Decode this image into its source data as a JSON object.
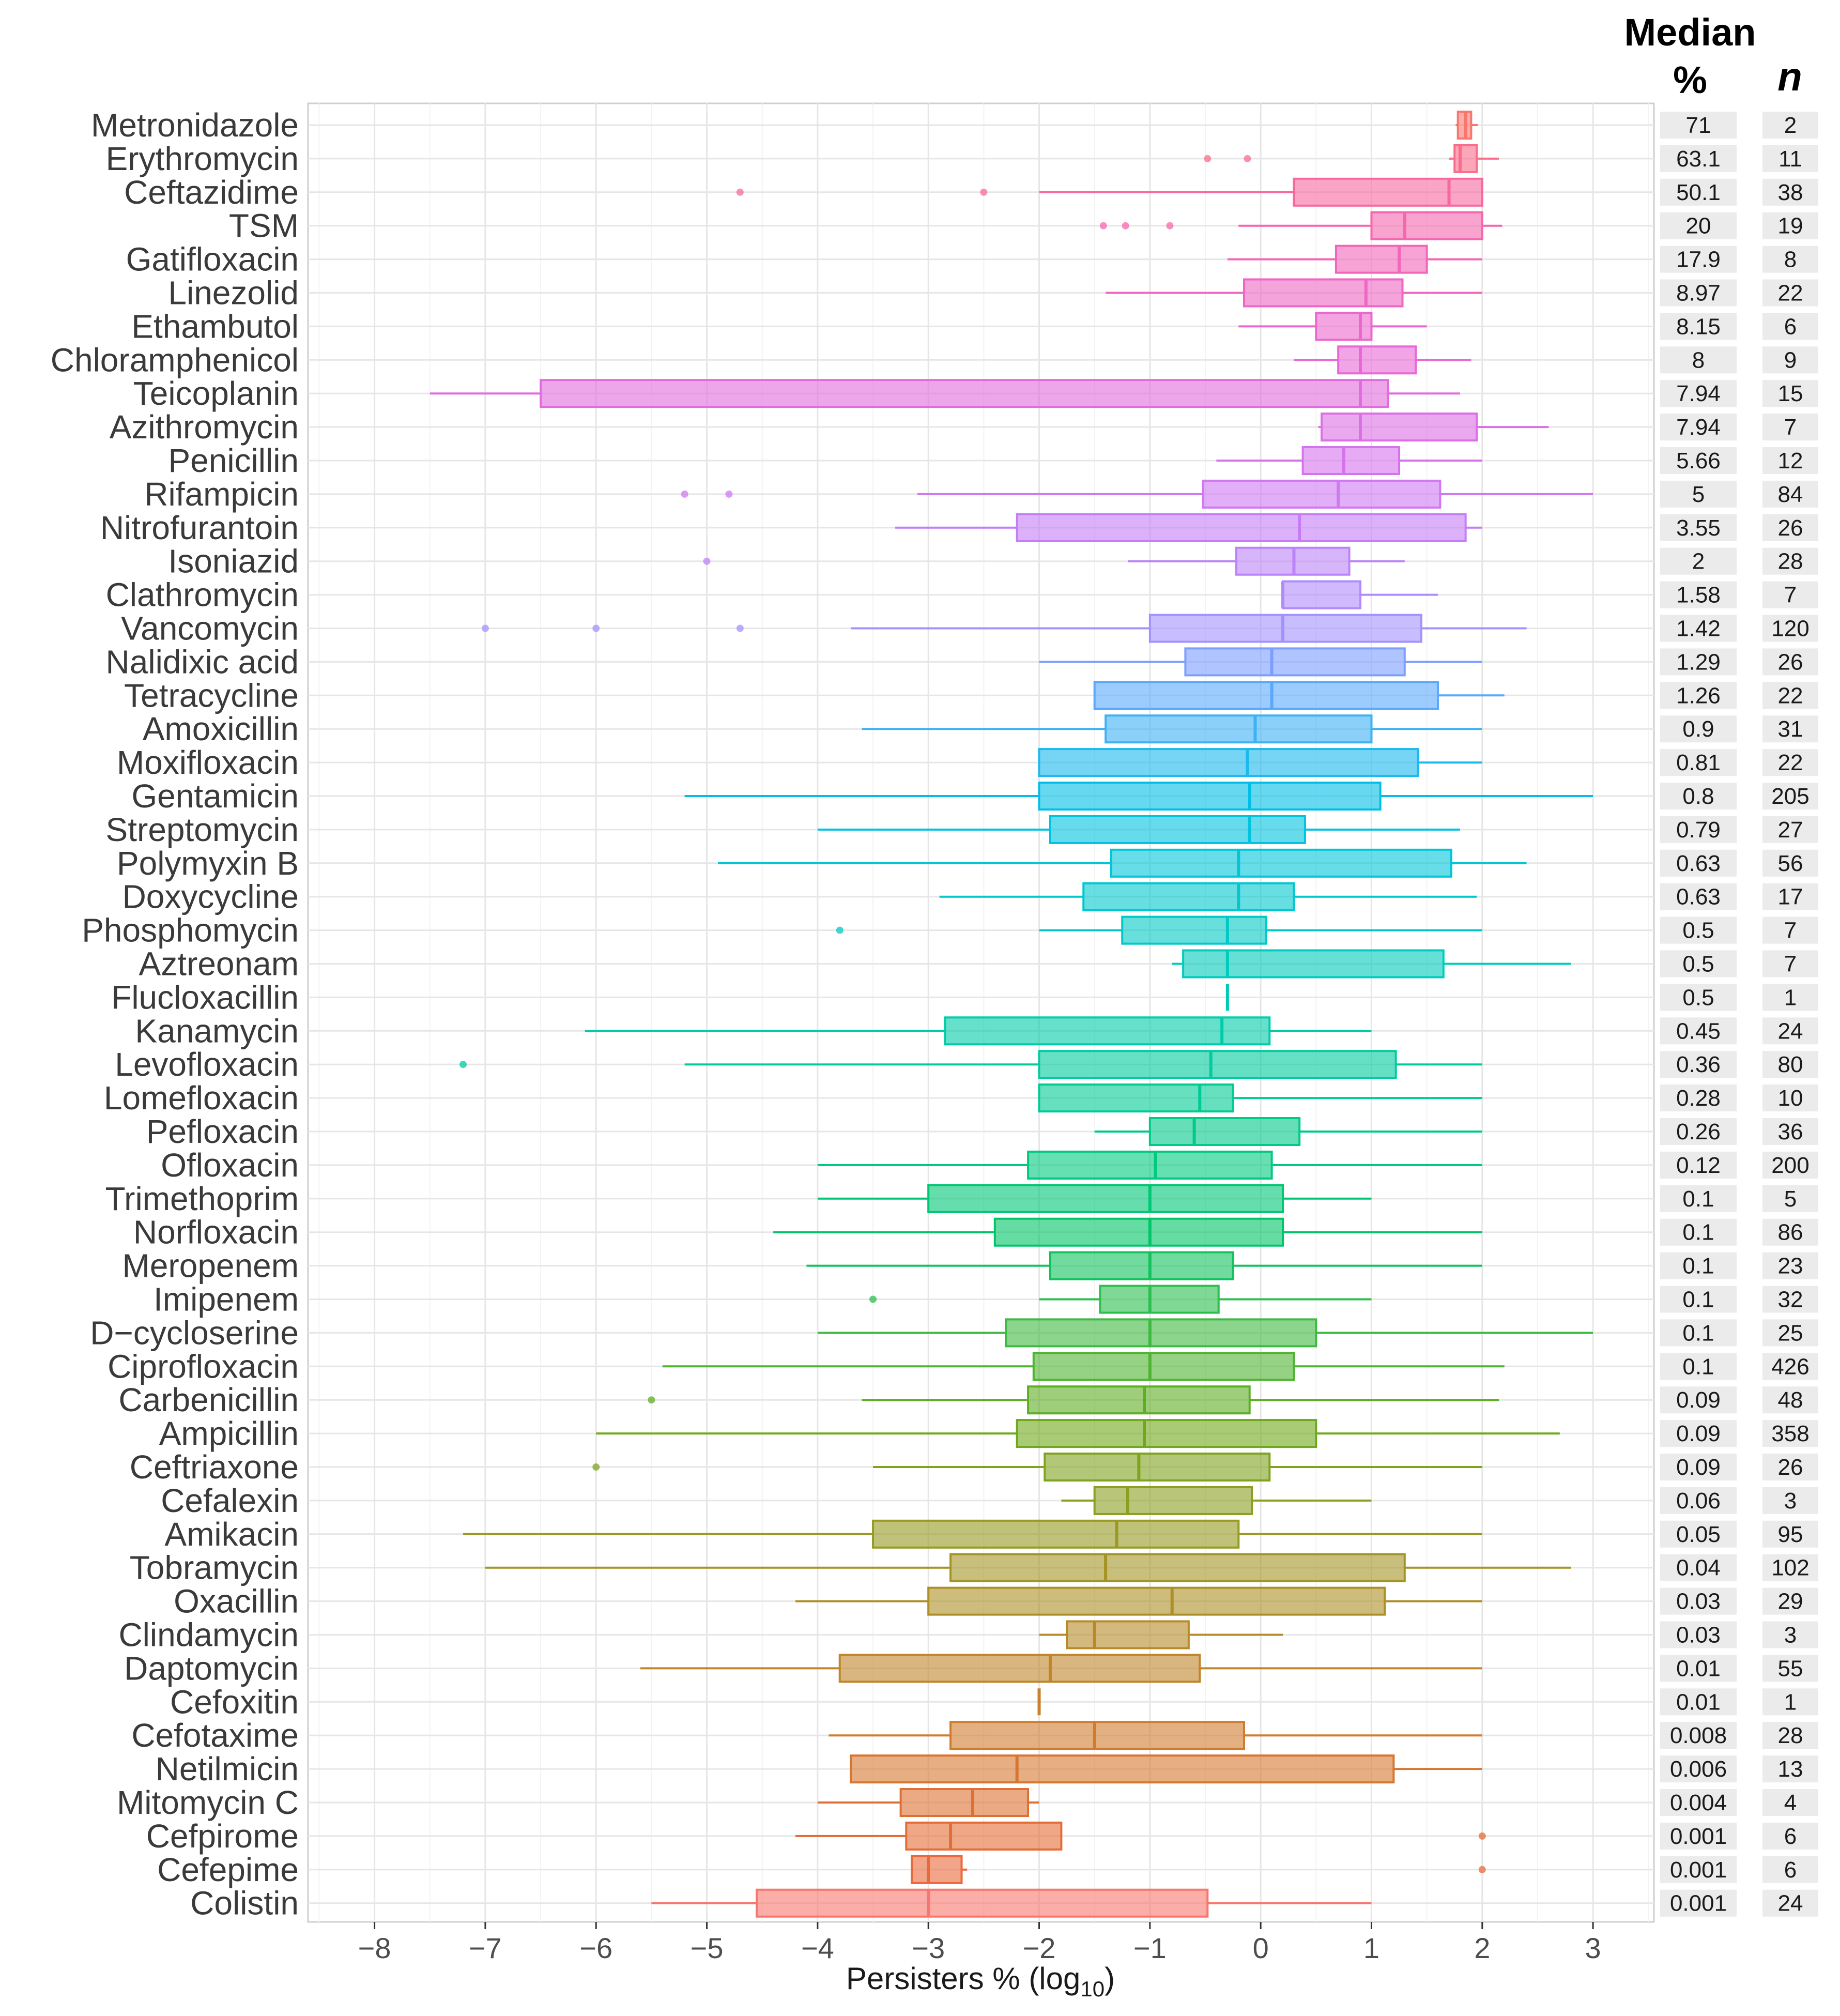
{
  "chart_data": {
    "type": "boxplot",
    "xlabel": "Persisters % (log",
    "xlabel_subscript": "10",
    "xlabel_suffix": ")",
    "xlim": [
      -8.6,
      3.55
    ],
    "x_ticks": [
      -8,
      -7,
      -6,
      -5,
      -4,
      -3,
      -2,
      -1,
      0,
      1,
      2,
      3
    ],
    "x_tick_labels": [
      "−8",
      "−7",
      "−6",
      "−5",
      "−4",
      "−3",
      "−2",
      "−1",
      "0",
      "1",
      "2",
      "3"
    ],
    "table_headers": {
      "median_top": "Median",
      "median_bottom": "%",
      "n": "n"
    },
    "series": [
      {
        "name": "Metronidazole",
        "q1": 1.78,
        "median": 1.85,
        "q3": 1.9,
        "whisker_low": 1.76,
        "whisker_high": 1.96,
        "outliers": [],
        "median_pct": "71",
        "n": "2",
        "color": "#f8766d"
      },
      {
        "name": "Erythromycin",
        "q1": 1.75,
        "median": 1.8,
        "q3": 1.95,
        "whisker_low": 1.7,
        "whisker_high": 2.15,
        "outliers": [
          -0.48,
          -0.12
        ],
        "median_pct": "63.1",
        "n": "11",
        "color": "#fa6d8a"
      },
      {
        "name": "Ceftazidime",
        "q1": 0.3,
        "median": 1.7,
        "q3": 2.0,
        "whisker_low": -2.0,
        "whisker_high": 2.0,
        "outliers": [
          -4.7,
          -2.5
        ],
        "median_pct": "50.1",
        "n": "38",
        "color": "#f7699e"
      },
      {
        "name": "TSM",
        "q1": 1.0,
        "median": 1.3,
        "q3": 2.0,
        "whisker_low": -0.2,
        "whisker_high": 2.18,
        "outliers": [
          -1.42,
          -1.22,
          -0.82
        ],
        "median_pct": "20",
        "n": "19",
        "color": "#f567ad"
      },
      {
        "name": "Gatifloxacin",
        "q1": 0.68,
        "median": 1.25,
        "q3": 1.5,
        "whisker_low": -0.3,
        "whisker_high": 2.0,
        "outliers": [],
        "median_pct": "17.9",
        "n": "8",
        "color": "#f266b9"
      },
      {
        "name": "Linezolid",
        "q1": -0.15,
        "median": 0.95,
        "q3": 1.28,
        "whisker_low": -1.4,
        "whisker_high": 2.0,
        "outliers": [],
        "median_pct": "8.97",
        "n": "22",
        "color": "#ef66c3"
      },
      {
        "name": "Ethambutol",
        "q1": 0.5,
        "median": 0.9,
        "q3": 1.0,
        "whisker_low": -0.2,
        "whisker_high": 1.5,
        "outliers": [],
        "median_pct": "8.15",
        "n": "6",
        "color": "#eb67cd"
      },
      {
        "name": "Chloramphenicol",
        "q1": 0.7,
        "median": 0.9,
        "q3": 1.4,
        "whisker_low": 0.3,
        "whisker_high": 1.9,
        "outliers": [],
        "median_pct": "8",
        "n": "9",
        "color": "#e768d6"
      },
      {
        "name": "Teicoplanin",
        "q1": -6.5,
        "median": 0.9,
        "q3": 1.15,
        "whisker_low": -7.5,
        "whisker_high": 1.8,
        "outliers": [],
        "median_pct": "7.94",
        "n": "15",
        "color": "#e26bde"
      },
      {
        "name": "Azithromycin",
        "q1": 0.55,
        "median": 0.9,
        "q3": 1.95,
        "whisker_low": 0.52,
        "whisker_high": 2.6,
        "outliers": [],
        "median_pct": "7.94",
        "n": "7",
        "color": "#dc6fe5"
      },
      {
        "name": "Penicillin",
        "q1": 0.38,
        "median": 0.75,
        "q3": 1.25,
        "whisker_low": -0.4,
        "whisker_high": 2.0,
        "outliers": [],
        "median_pct": "5.66",
        "n": "12",
        "color": "#d573ec"
      },
      {
        "name": "Rifampicin",
        "q1": -0.52,
        "median": 0.7,
        "q3": 1.62,
        "whisker_low": -3.1,
        "whisker_high": 3.0,
        "outliers": [
          -5.2,
          -4.8
        ],
        "median_pct": "5",
        "n": "84",
        "color": "#ce78f1"
      },
      {
        "name": "Nitrofurantoin",
        "q1": -2.2,
        "median": 0.35,
        "q3": 1.85,
        "whisker_low": -3.3,
        "whisker_high": 2.0,
        "outliers": [],
        "median_pct": "3.55",
        "n": "26",
        "color": "#c57df6"
      },
      {
        "name": "Isoniazid",
        "q1": -0.22,
        "median": 0.3,
        "q3": 0.8,
        "whisker_low": -1.2,
        "whisker_high": 1.3,
        "outliers": [
          -5.0
        ],
        "median_pct": "2",
        "n": "28",
        "color": "#bb83f9"
      },
      {
        "name": "Clathromycin",
        "q1": 0.2,
        "median": 0.2,
        "q3": 0.9,
        "whisker_low": 0.2,
        "whisker_high": 1.6,
        "outliers": [],
        "median_pct": "1.58",
        "n": "7",
        "color": "#b08afc"
      },
      {
        "name": "Vancomycin",
        "q1": -1.0,
        "median": 0.2,
        "q3": 1.45,
        "whisker_low": -3.7,
        "whisker_high": 2.4,
        "outliers": [
          -7.0,
          -6.0,
          -4.7
        ],
        "median_pct": "1.42",
        "n": "120",
        "color": "#a391fe"
      },
      {
        "name": "Nalidixic acid",
        "q1": -0.68,
        "median": 0.1,
        "q3": 1.3,
        "whisker_low": -2.0,
        "whisker_high": 2.0,
        "outliers": [],
        "median_pct": "1.29",
        "n": "26",
        "color": "#7c9eff"
      },
      {
        "name": "Tetracycline",
        "q1": -1.5,
        "median": 0.1,
        "q3": 1.6,
        "whisker_low": -1.5,
        "whisker_high": 2.2,
        "outliers": [],
        "median_pct": "1.26",
        "n": "22",
        "color": "#5aa8fb"
      },
      {
        "name": "Amoxicillin",
        "q1": -1.4,
        "median": -0.05,
        "q3": 1.0,
        "whisker_low": -3.6,
        "whisker_high": 2.0,
        "outliers": [],
        "median_pct": "0.9",
        "n": "31",
        "color": "#3cb1f5"
      },
      {
        "name": "Moxifloxacin",
        "q1": -2.0,
        "median": -0.12,
        "q3": 1.42,
        "whisker_low": -2.0,
        "whisker_high": 2.0,
        "outliers": [],
        "median_pct": "0.81",
        "n": "22",
        "color": "#1ab9ee"
      },
      {
        "name": "Gentamicin",
        "q1": -2.0,
        "median": -0.1,
        "q3": 1.08,
        "whisker_low": -5.2,
        "whisker_high": 3.0,
        "outliers": [],
        "median_pct": "0.8",
        "n": "205",
        "color": "#00bfe7"
      },
      {
        "name": "Streptomycin",
        "q1": -1.9,
        "median": -0.1,
        "q3": 0.4,
        "whisker_low": -4.0,
        "whisker_high": 1.8,
        "outliers": [],
        "median_pct": "0.79",
        "n": "27",
        "color": "#00c3e0"
      },
      {
        "name": "Polymyxin B",
        "q1": -1.35,
        "median": -0.2,
        "q3": 1.72,
        "whisker_low": -4.9,
        "whisker_high": 2.4,
        "outliers": [],
        "median_pct": "0.63",
        "n": "56",
        "color": "#00c6d8"
      },
      {
        "name": "Doxycycline",
        "q1": -1.6,
        "median": -0.2,
        "q3": 0.3,
        "whisker_low": -2.9,
        "whisker_high": 1.95,
        "outliers": [],
        "median_pct": "0.63",
        "n": "17",
        "color": "#00c8cf"
      },
      {
        "name": "Phosphomycin",
        "q1": -1.25,
        "median": -0.3,
        "q3": 0.05,
        "whisker_low": -2.0,
        "whisker_high": 2.0,
        "outliers": [
          -3.8
        ],
        "median_pct": "0.5",
        "n": "7",
        "color": "#00cac6"
      },
      {
        "name": "Aztreonam",
        "q1": -0.7,
        "median": -0.3,
        "q3": 1.65,
        "whisker_low": -0.8,
        "whisker_high": 2.8,
        "outliers": [],
        "median_pct": "0.5",
        "n": "7",
        "color": "#00cbbd"
      },
      {
        "name": "Flucloxacillin",
        "q1": -0.3,
        "median": -0.3,
        "q3": -0.3,
        "whisker_low": -0.3,
        "whisker_high": -0.3,
        "outliers": [],
        "median_pct": "0.5",
        "n": "1",
        "color": "#00ccb3"
      },
      {
        "name": "Kanamycin",
        "q1": -2.85,
        "median": -0.35,
        "q3": 0.08,
        "whisker_low": -6.1,
        "whisker_high": 1.0,
        "outliers": [],
        "median_pct": "0.45",
        "n": "24",
        "color": "#00cca9"
      },
      {
        "name": "Levofloxacin",
        "q1": -2.0,
        "median": -0.45,
        "q3": 1.22,
        "whisker_low": -5.2,
        "whisker_high": 2.0,
        "outliers": [
          -7.2
        ],
        "median_pct": "0.36",
        "n": "80",
        "color": "#00cc9f"
      },
      {
        "name": "Lomefloxacin",
        "q1": -2.0,
        "median": -0.55,
        "q3": -0.25,
        "whisker_low": -2.0,
        "whisker_high": 2.0,
        "outliers": [],
        "median_pct": "0.28",
        "n": "10",
        "color": "#00cb95"
      },
      {
        "name": "Pefloxacin",
        "q1": -1.0,
        "median": -0.6,
        "q3": 0.35,
        "whisker_low": -1.5,
        "whisker_high": 2.0,
        "outliers": [],
        "median_pct": "0.26",
        "n": "36",
        "color": "#00ca8a"
      },
      {
        "name": "Ofloxacin",
        "q1": -2.1,
        "median": -0.95,
        "q3": 0.1,
        "whisker_low": -4.0,
        "whisker_high": 2.0,
        "outliers": [],
        "median_pct": "0.12",
        "n": "200",
        "color": "#00c97f"
      },
      {
        "name": "Trimethoprim",
        "q1": -3.0,
        "median": -1.0,
        "q3": 0.2,
        "whisker_low": -4.0,
        "whisker_high": 1.0,
        "outliers": [],
        "median_pct": "0.1",
        "n": "5",
        "color": "#00c774"
      },
      {
        "name": "Norfloxacin",
        "q1": -2.4,
        "median": -1.0,
        "q3": 0.2,
        "whisker_low": -4.4,
        "whisker_high": 2.0,
        "outliers": [],
        "median_pct": "0.1",
        "n": "86",
        "color": "#00c569"
      },
      {
        "name": "Meropenem",
        "q1": -1.9,
        "median": -1.0,
        "q3": -0.25,
        "whisker_low": -4.1,
        "whisker_high": 2.0,
        "outliers": [],
        "median_pct": "0.1",
        "n": "23",
        "color": "#12c25d"
      },
      {
        "name": "Imipenem",
        "q1": -1.45,
        "median": -1.0,
        "q3": -0.38,
        "whisker_low": -2.0,
        "whisker_high": 1.0,
        "outliers": [
          -3.5
        ],
        "median_pct": "0.1",
        "n": "32",
        "color": "#2cbe4f"
      },
      {
        "name": "D−cycloserine",
        "q1": -2.3,
        "median": -1.0,
        "q3": 0.5,
        "whisker_low": -4.0,
        "whisker_high": 3.0,
        "outliers": [],
        "median_pct": "0.1",
        "n": "25",
        "color": "#3eb941"
      },
      {
        "name": "Ciprofloxacin",
        "q1": -2.05,
        "median": -1.0,
        "q3": 0.3,
        "whisker_low": -5.4,
        "whisker_high": 2.2,
        "outliers": [],
        "median_pct": "0.1",
        "n": "426",
        "color": "#4fb431"
      },
      {
        "name": "Carbenicillin",
        "q1": -2.1,
        "median": -1.05,
        "q3": -0.1,
        "whisker_low": -3.6,
        "whisker_high": 2.15,
        "outliers": [
          -5.5
        ],
        "median_pct": "0.09",
        "n": "48",
        "color": "#5eae22"
      },
      {
        "name": "Ampicillin",
        "q1": -2.2,
        "median": -1.05,
        "q3": 0.5,
        "whisker_low": -6.0,
        "whisker_high": 2.7,
        "outliers": [],
        "median_pct": "0.09",
        "n": "358",
        "color": "#6fa91b"
      },
      {
        "name": "Ceftriaxone",
        "q1": -1.95,
        "median": -1.1,
        "q3": 0.08,
        "whisker_low": -3.5,
        "whisker_high": 2.0,
        "outliers": [
          -6.0
        ],
        "median_pct": "0.09",
        "n": "26",
        "color": "#7ea41e"
      },
      {
        "name": "Cefalexin",
        "q1": -1.5,
        "median": -1.2,
        "q3": -0.08,
        "whisker_low": -1.8,
        "whisker_high": 1.0,
        "outliers": [],
        "median_pct": "0.06",
        "n": "3",
        "color": "#8b9f20"
      },
      {
        "name": "Amikacin",
        "q1": -3.5,
        "median": -1.3,
        "q3": -0.2,
        "whisker_low": -7.2,
        "whisker_high": 2.0,
        "outliers": [],
        "median_pct": "0.05",
        "n": "95",
        "color": "#989a22"
      },
      {
        "name": "Tobramycin",
        "q1": -2.8,
        "median": -1.4,
        "q3": 1.3,
        "whisker_low": -7.0,
        "whisker_high": 2.8,
        "outliers": [],
        "median_pct": "0.04",
        "n": "102",
        "color": "#a39424"
      },
      {
        "name": "Oxacillin",
        "q1": -3.0,
        "median": -0.8,
        "q3": 1.12,
        "whisker_low": -4.2,
        "whisker_high": 2.0,
        "outliers": [],
        "median_pct": "0.03",
        "n": "29",
        "color": "#ae8f26"
      },
      {
        "name": "Clindamycin",
        "q1": -1.75,
        "median": -1.5,
        "q3": -0.65,
        "whisker_low": -2.0,
        "whisker_high": 0.2,
        "outliers": [],
        "median_pct": "0.03",
        "n": "3",
        "color": "#b78a28"
      },
      {
        "name": "Daptomycin",
        "q1": -3.8,
        "median": -1.9,
        "q3": -0.55,
        "whisker_low": -5.6,
        "whisker_high": 2.0,
        "outliers": [],
        "median_pct": "0.01",
        "n": "55",
        "color": "#c0852a"
      },
      {
        "name": "Cefoxitin",
        "q1": -2.0,
        "median": -2.0,
        "q3": -2.0,
        "whisker_low": -2.0,
        "whisker_high": -2.0,
        "outliers": [],
        "median_pct": "0.01",
        "n": "1",
        "color": "#c8802c"
      },
      {
        "name": "Cefotaxime",
        "q1": -2.8,
        "median": -1.5,
        "q3": -0.15,
        "whisker_low": -3.9,
        "whisker_high": 2.0,
        "outliers": [],
        "median_pct": "0.008",
        "n": "28",
        "color": "#d07b2e"
      },
      {
        "name": "Netilmicin",
        "q1": -3.7,
        "median": -2.2,
        "q3": 1.2,
        "whisker_low": -3.7,
        "whisker_high": 2.0,
        "outliers": [],
        "median_pct": "0.006",
        "n": "13",
        "color": "#d77630"
      },
      {
        "name": "Mitomycin C",
        "q1": -3.25,
        "median": -2.6,
        "q3": -2.1,
        "whisker_low": -4.0,
        "whisker_high": -2.0,
        "outliers": [],
        "median_pct": "0.004",
        "n": "4",
        "color": "#de7132"
      },
      {
        "name": "Cefpirome",
        "q1": -3.2,
        "median": -2.8,
        "q3": -1.8,
        "whisker_low": -4.2,
        "whisker_high": -1.8,
        "outliers": [
          2.0
        ],
        "median_pct": "0.001",
        "n": "6",
        "color": "#e46c36"
      },
      {
        "name": "Cefepime",
        "q1": -3.15,
        "median": -3.0,
        "q3": -2.7,
        "whisker_low": -3.15,
        "whisker_high": -2.65,
        "outliers": [
          2.0
        ],
        "median_pct": "0.001",
        "n": "6",
        "color": "#e9693b"
      },
      {
        "name": "Colistin",
        "q1": -4.55,
        "median": -3.0,
        "q3": -0.48,
        "whisker_low": -5.5,
        "whisker_high": 1.0,
        "outliers": [],
        "median_pct": "0.001",
        "n": "24",
        "color": "#f8766d"
      }
    ]
  }
}
